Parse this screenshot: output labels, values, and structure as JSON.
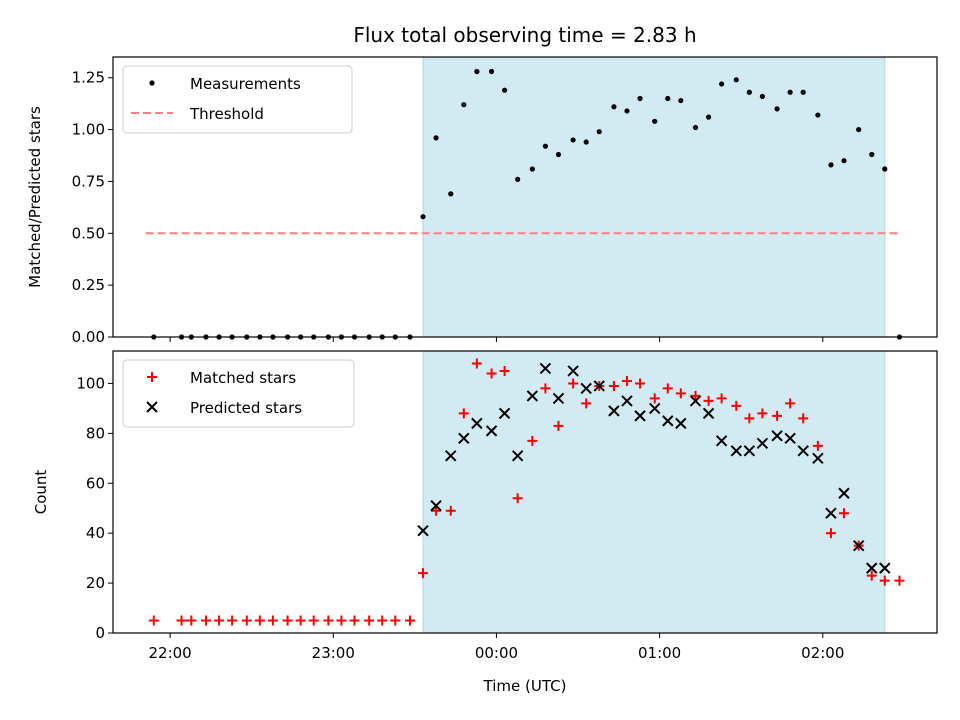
{
  "chart_data": {
    "type": "scatter",
    "title": "Flux total observing time = 2.83 h",
    "xlabel": "Time (UTC)",
    "x_tick_labels": [
      "22:00",
      "23:00",
      "00:00",
      "01:00",
      "02:00"
    ],
    "x_tick_hours": [
      22,
      23,
      24,
      25,
      26
    ],
    "xlim": [
      21.65,
      26.7
    ],
    "highlight_span": {
      "start": 23.55,
      "end": 26.38,
      "color": "#add8e6"
    },
    "panels": [
      {
        "name": "ratio",
        "ylabel": "Matched/Predicted stars",
        "ylim": [
          0,
          1.35
        ],
        "yticks": [
          0,
          0.25,
          0.5,
          0.75,
          1.0,
          1.25
        ],
        "ytick_labels": [
          "0.00",
          "0.25",
          "0.50",
          "0.75",
          "1.00",
          "1.25"
        ],
        "legend": [
          {
            "label": "Measurements",
            "marker": "dot",
            "color": "#000000"
          },
          {
            "label": "Threshold",
            "marker": "dashed",
            "color": "#ff7f7f"
          }
        ],
        "threshold": {
          "value": 0.5,
          "x_start": 21.85,
          "x_end": 26.47
        },
        "series": [
          {
            "name": "Measurements",
            "marker": "dot",
            "color": "#000000",
            "x": [
              21.9,
              22.07,
              22.13,
              22.22,
              22.3,
              22.38,
              22.47,
              22.55,
              22.63,
              22.72,
              22.8,
              22.88,
              22.97,
              23.05,
              23.13,
              23.22,
              23.3,
              23.38,
              23.47,
              23.55,
              23.63,
              23.72,
              23.8,
              23.88,
              23.97,
              24.05,
              24.13,
              24.22,
              24.3,
              24.38,
              24.47,
              24.55,
              24.63,
              24.72,
              24.8,
              24.88,
              24.97,
              25.05,
              25.13,
              25.22,
              25.3,
              25.38,
              25.47,
              25.55,
              25.63,
              25.72,
              25.8,
              25.88,
              25.97,
              26.05,
              26.13,
              26.22,
              26.3,
              26.38,
              26.47
            ],
            "y": [
              0,
              0,
              0,
              0,
              0,
              0,
              0,
              0,
              0,
              0,
              0,
              0,
              0,
              0,
              0,
              0,
              0,
              0,
              0,
              0.58,
              0.96,
              0.69,
              1.12,
              1.28,
              1.28,
              1.19,
              0.76,
              0.81,
              0.92,
              0.88,
              0.95,
              0.94,
              0.99,
              1.11,
              1.09,
              1.15,
              1.04,
              1.15,
              1.14,
              1.01,
              1.06,
              1.22,
              1.24,
              1.18,
              1.16,
              1.1,
              1.18,
              1.18,
              1.07,
              0.83,
              0.85,
              1.0,
              0.88,
              0.81,
              0
            ]
          }
        ]
      },
      {
        "name": "counts",
        "ylabel": "Count",
        "ylim": [
          0,
          113
        ],
        "yticks": [
          0,
          20,
          40,
          60,
          80,
          100
        ],
        "ytick_labels": [
          "0",
          "20",
          "40",
          "60",
          "80",
          "100"
        ],
        "legend": [
          {
            "label": "Matched stars",
            "marker": "plus",
            "color": "#ff0000"
          },
          {
            "label": "Predicted stars",
            "marker": "x",
            "color": "#000000"
          }
        ],
        "series": [
          {
            "name": "Matched stars",
            "marker": "plus",
            "color": "#ff0000",
            "x": [
              21.9,
              22.07,
              22.13,
              22.22,
              22.3,
              22.38,
              22.47,
              22.55,
              22.63,
              22.72,
              22.8,
              22.88,
              22.97,
              23.05,
              23.13,
              23.22,
              23.3,
              23.38,
              23.47,
              23.55,
              23.63,
              23.72,
              23.8,
              23.88,
              23.97,
              24.05,
              24.13,
              24.22,
              24.3,
              24.38,
              24.47,
              24.55,
              24.63,
              24.72,
              24.8,
              24.88,
              24.97,
              25.05,
              25.13,
              25.22,
              25.3,
              25.38,
              25.47,
              25.55,
              25.63,
              25.72,
              25.8,
              25.88,
              25.97,
              26.05,
              26.13,
              26.22,
              26.3,
              26.38,
              26.47
            ],
            "y": [
              5,
              5,
              5,
              5,
              5,
              5,
              5,
              5,
              5,
              5,
              5,
              5,
              5,
              5,
              5,
              5,
              5,
              5,
              5,
              24,
              49,
              49,
              88,
              108,
              104,
              105,
              54,
              77,
              98,
              83,
              100,
              92,
              99,
              99,
              101,
              100,
              94,
              98,
              96,
              95,
              93,
              94,
              91,
              86,
              88,
              87,
              92,
              86,
              75,
              40,
              48,
              35,
              23,
              21,
              21
            ]
          },
          {
            "name": "Predicted stars",
            "marker": "x",
            "color": "#000000",
            "x": [
              23.55,
              23.63,
              23.72,
              23.8,
              23.88,
              23.97,
              24.05,
              24.13,
              24.22,
              24.3,
              24.38,
              24.47,
              24.55,
              24.63,
              24.72,
              24.8,
              24.88,
              24.97,
              25.05,
              25.13,
              25.22,
              25.3,
              25.38,
              25.47,
              25.55,
              25.63,
              25.72,
              25.8,
              25.88,
              25.97,
              26.05,
              26.13,
              26.22,
              26.3,
              26.38
            ],
            "y": [
              41,
              51,
              71,
              78,
              84,
              81,
              88,
              71,
              95,
              106,
              94,
              105,
              98,
              99,
              89,
              93,
              87,
              90,
              85,
              84,
              93,
              88,
              77,
              73,
              73,
              76,
              79,
              78,
              73,
              70,
              48,
              56,
              35,
              26,
              26
            ]
          }
        ]
      }
    ]
  }
}
